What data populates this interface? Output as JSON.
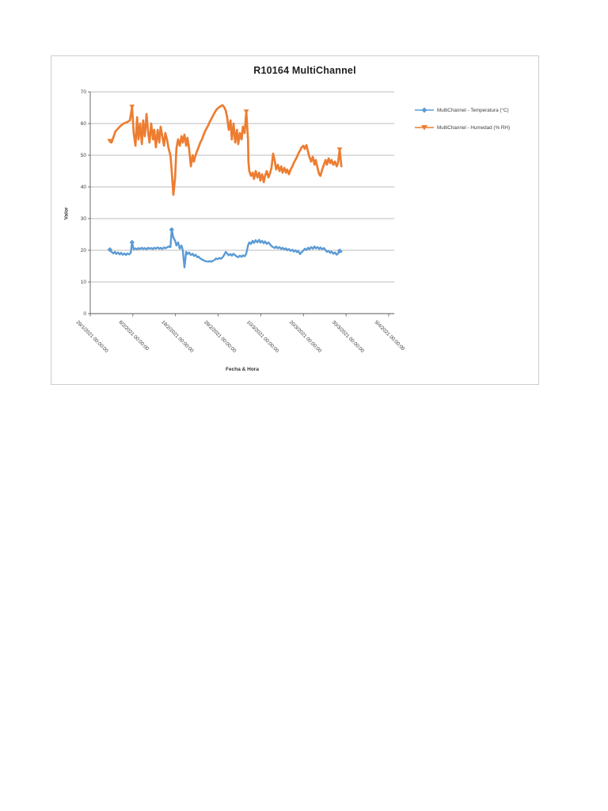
{
  "page": {
    "background": "#ffffff"
  },
  "chart_data": {
    "type": "line",
    "title": "R10164 MultiChannel",
    "xlabel": "Fecha & Hora",
    "ylabel": "Valor",
    "ylim": [
      0,
      70
    ],
    "y_ticks": [
      0,
      10,
      20,
      30,
      40,
      50,
      60,
      70
    ],
    "x_tick_labels": [
      "29/1/2021 00:00:00",
      "8/2/2021 00:00:00",
      "18/2/2021 00:00:00",
      "28/2/2021 00:00:00",
      "10/3/2021 00:00:00",
      "20/3/2021 00:00:00",
      "30/3/2021 00:00:00",
      "9/4/2021 00:00:00"
    ],
    "x_tick_days": [
      0,
      10,
      20,
      30,
      40,
      50,
      60,
      70
    ],
    "x_unit": "days since 29/1/2021 00:00:00",
    "grid": true,
    "legend_position": "right",
    "colors": {
      "grid": "#a6a6a6",
      "axis": "#595959",
      "tick_text": "#404040"
    },
    "series": [
      {
        "name": "MultiChannel - Temperatura  (°C)",
        "color": "#5b9bd5",
        "marker": "diamond",
        "marker_points": [
          [
            4.6,
            20.2
          ],
          [
            9.8,
            22.5
          ],
          [
            19.1,
            26.5
          ],
          [
            58.5,
            19.8
          ]
        ],
        "points": [
          [
            4.6,
            20.2
          ],
          [
            5.0,
            19.5
          ],
          [
            5.4,
            19.0
          ],
          [
            5.8,
            19.5
          ],
          [
            6.1,
            18.8
          ],
          [
            6.5,
            19.3
          ],
          [
            6.9,
            18.7
          ],
          [
            7.2,
            19.2
          ],
          [
            7.6,
            18.6
          ],
          [
            8.0,
            19.0
          ],
          [
            8.4,
            18.5
          ],
          [
            8.7,
            19.0
          ],
          [
            9.1,
            18.7
          ],
          [
            9.5,
            19.2
          ],
          [
            9.8,
            22.5
          ],
          [
            10.2,
            20.3
          ],
          [
            10.6,
            20.6
          ],
          [
            11.0,
            20.3
          ],
          [
            11.3,
            20.7
          ],
          [
            11.7,
            20.4
          ],
          [
            12.1,
            20.8
          ],
          [
            12.4,
            20.4
          ],
          [
            12.8,
            20.7
          ],
          [
            13.2,
            20.3
          ],
          [
            13.6,
            20.8
          ],
          [
            13.9,
            20.5
          ],
          [
            14.3,
            20.7
          ],
          [
            14.7,
            20.4
          ],
          [
            15.0,
            20.8
          ],
          [
            15.4,
            20.5
          ],
          [
            15.8,
            20.9
          ],
          [
            16.2,
            20.5
          ],
          [
            16.5,
            20.8
          ],
          [
            16.9,
            20.4
          ],
          [
            17.3,
            20.9
          ],
          [
            17.6,
            20.6
          ],
          [
            18.0,
            20.9
          ],
          [
            18.4,
            21.2
          ],
          [
            18.8,
            21.0
          ],
          [
            19.1,
            26.5
          ],
          [
            19.5,
            24.0
          ],
          [
            19.9,
            23.0
          ],
          [
            20.2,
            21.5
          ],
          [
            20.6,
            22.5
          ],
          [
            21.0,
            20.5
          ],
          [
            21.4,
            21.5
          ],
          [
            21.7,
            20.0
          ],
          [
            22.1,
            14.6
          ],
          [
            22.5,
            19.5
          ],
          [
            22.8,
            18.8
          ],
          [
            23.2,
            19.3
          ],
          [
            23.6,
            18.5
          ],
          [
            24.0,
            18.9
          ],
          [
            24.3,
            18.2
          ],
          [
            24.7,
            18.6
          ],
          [
            25.1,
            17.8
          ],
          [
            25.4,
            18.0
          ],
          [
            25.8,
            17.4
          ],
          [
            26.2,
            17.1
          ],
          [
            26.6,
            16.8
          ],
          [
            26.9,
            16.6
          ],
          [
            27.3,
            16.5
          ],
          [
            27.7,
            16.4
          ],
          [
            28.0,
            16.6
          ],
          [
            28.4,
            16.4
          ],
          [
            28.8,
            16.7
          ],
          [
            29.2,
            17.0
          ],
          [
            29.5,
            17.4
          ],
          [
            29.9,
            17.2
          ],
          [
            30.3,
            17.6
          ],
          [
            30.6,
            17.3
          ],
          [
            31.0,
            17.7
          ],
          [
            31.4,
            18.5
          ],
          [
            31.8,
            19.5
          ],
          [
            32.1,
            19.0
          ],
          [
            32.5,
            18.4
          ],
          [
            32.9,
            18.8
          ],
          [
            33.2,
            18.3
          ],
          [
            33.6,
            18.9
          ],
          [
            34.0,
            18.4
          ],
          [
            34.4,
            18.0
          ],
          [
            34.7,
            17.8
          ],
          [
            35.1,
            18.3
          ],
          [
            35.5,
            17.9
          ],
          [
            35.8,
            18.4
          ],
          [
            36.2,
            18.1
          ],
          [
            36.6,
            19.0
          ],
          [
            37.0,
            21.5
          ],
          [
            37.3,
            22.5
          ],
          [
            37.7,
            22.0
          ],
          [
            38.1,
            23.0
          ],
          [
            38.4,
            22.3
          ],
          [
            38.8,
            23.2
          ],
          [
            39.2,
            22.5
          ],
          [
            39.6,
            23.3
          ],
          [
            39.9,
            22.4
          ],
          [
            40.3,
            23.0
          ],
          [
            40.7,
            22.2
          ],
          [
            41.0,
            22.8
          ],
          [
            41.4,
            22.0
          ],
          [
            41.8,
            22.5
          ],
          [
            42.2,
            21.8
          ],
          [
            42.5,
            21.3
          ],
          [
            42.9,
            21.0
          ],
          [
            43.3,
            20.7
          ],
          [
            43.6,
            21.2
          ],
          [
            44.0,
            20.6
          ],
          [
            44.4,
            21.0
          ],
          [
            44.8,
            20.4
          ],
          [
            45.1,
            20.8
          ],
          [
            45.5,
            20.3
          ],
          [
            45.9,
            20.6
          ],
          [
            46.2,
            20.0
          ],
          [
            46.6,
            20.4
          ],
          [
            47.0,
            19.8
          ],
          [
            47.4,
            20.2
          ],
          [
            47.7,
            19.6
          ],
          [
            48.1,
            20.0
          ],
          [
            48.5,
            19.4
          ],
          [
            48.8,
            19.8
          ],
          [
            49.2,
            18.8
          ],
          [
            49.6,
            19.4
          ],
          [
            50.0,
            19.9
          ],
          [
            50.3,
            20.5
          ],
          [
            50.7,
            20.1
          ],
          [
            51.1,
            20.8
          ],
          [
            51.4,
            20.3
          ],
          [
            51.8,
            21.0
          ],
          [
            52.2,
            20.5
          ],
          [
            52.6,
            21.2
          ],
          [
            52.9,
            20.6
          ],
          [
            53.3,
            21.0
          ],
          [
            53.7,
            20.4
          ],
          [
            54.0,
            20.9
          ],
          [
            54.4,
            20.3
          ],
          [
            54.8,
            20.7
          ],
          [
            55.2,
            20.0
          ],
          [
            55.5,
            19.5
          ],
          [
            55.9,
            19.8
          ],
          [
            56.3,
            19.2
          ],
          [
            56.6,
            19.6
          ],
          [
            57.0,
            18.9
          ],
          [
            57.4,
            19.3
          ],
          [
            57.8,
            18.6
          ],
          [
            58.1,
            19.0
          ],
          [
            58.5,
            19.8
          ],
          [
            58.9,
            19.5
          ]
        ]
      },
      {
        "name": "MultiChannel - Humedad (% RH)",
        "color": "#ed7d31",
        "marker": "triangle-down",
        "marker_points": [
          [
            4.6,
            54.5
          ],
          [
            9.8,
            65.3
          ],
          [
            36.6,
            63.8
          ],
          [
            58.5,
            51.8
          ]
        ],
        "points": [
          [
            4.6,
            54.5
          ],
          [
            5.0,
            54.0
          ],
          [
            5.9,
            57.5
          ],
          [
            6.9,
            59.0
          ],
          [
            7.8,
            60.0
          ],
          [
            8.7,
            60.5
          ],
          [
            9.3,
            61.0
          ],
          [
            9.8,
            65.3
          ],
          [
            10.2,
            57.0
          ],
          [
            10.6,
            53.0
          ],
          [
            11.0,
            62.0
          ],
          [
            11.3,
            55.0
          ],
          [
            11.7,
            60.0
          ],
          [
            12.1,
            53.5
          ],
          [
            12.4,
            61.0
          ],
          [
            12.8,
            56.0
          ],
          [
            13.2,
            63.0
          ],
          [
            13.6,
            57.0
          ],
          [
            13.9,
            54.0
          ],
          [
            14.3,
            60.0
          ],
          [
            14.7,
            55.0
          ],
          [
            15.0,
            58.0
          ],
          [
            15.4,
            52.5
          ],
          [
            15.8,
            58.0
          ],
          [
            16.2,
            54.0
          ],
          [
            16.5,
            59.0
          ],
          [
            16.9,
            56.0
          ],
          [
            17.3,
            53.0
          ],
          [
            17.6,
            57.0
          ],
          [
            18.0,
            55.0
          ],
          [
            18.4,
            52.0
          ],
          [
            18.8,
            50.0
          ],
          [
            19.1,
            45.0
          ],
          [
            19.5,
            37.5
          ],
          [
            19.9,
            43.0
          ],
          [
            20.2,
            52.0
          ],
          [
            20.6,
            55.0
          ],
          [
            21.0,
            53.0
          ],
          [
            21.4,
            56.0
          ],
          [
            21.7,
            54.0
          ],
          [
            22.1,
            56.5
          ],
          [
            22.5,
            53.0
          ],
          [
            22.8,
            55.5
          ],
          [
            23.2,
            52.0
          ],
          [
            23.6,
            46.5
          ],
          [
            24.0,
            50.0
          ],
          [
            24.3,
            48.0
          ],
          [
            24.7,
            50.0
          ],
          [
            25.1,
            51.5
          ],
          [
            25.4,
            52.5
          ],
          [
            25.8,
            54.0
          ],
          [
            26.2,
            55.0
          ],
          [
            26.6,
            56.5
          ],
          [
            26.9,
            57.5
          ],
          [
            27.3,
            58.5
          ],
          [
            27.7,
            59.5
          ],
          [
            28.0,
            60.5
          ],
          [
            28.4,
            61.5
          ],
          [
            28.8,
            62.5
          ],
          [
            29.2,
            63.5
          ],
          [
            29.5,
            64.2
          ],
          [
            29.9,
            64.8
          ],
          [
            30.3,
            65.2
          ],
          [
            30.6,
            65.5
          ],
          [
            31.0,
            65.8
          ],
          [
            31.4,
            65.2
          ],
          [
            31.8,
            64.0
          ],
          [
            32.1,
            62.0
          ],
          [
            32.5,
            58.0
          ],
          [
            32.9,
            61.0
          ],
          [
            33.2,
            55.0
          ],
          [
            33.6,
            60.0
          ],
          [
            34.0,
            54.0
          ],
          [
            34.4,
            58.0
          ],
          [
            34.7,
            53.5
          ],
          [
            35.1,
            57.0
          ],
          [
            35.5,
            55.0
          ],
          [
            35.8,
            59.0
          ],
          [
            36.2,
            57.0
          ],
          [
            36.6,
            63.8
          ],
          [
            37.0,
            55.0
          ],
          [
            37.1,
            48.0
          ],
          [
            37.3,
            45.0
          ],
          [
            37.7,
            43.5
          ],
          [
            38.1,
            44.5
          ],
          [
            38.4,
            42.5
          ],
          [
            38.8,
            45.0
          ],
          [
            39.2,
            43.0
          ],
          [
            39.6,
            44.5
          ],
          [
            39.9,
            42.0
          ],
          [
            40.3,
            44.0
          ],
          [
            40.7,
            41.5
          ],
          [
            41.0,
            43.5
          ],
          [
            41.4,
            45.0
          ],
          [
            41.8,
            43.0
          ],
          [
            42.2,
            44.5
          ],
          [
            42.5,
            46.0
          ],
          [
            42.9,
            50.5
          ],
          [
            43.3,
            48.0
          ],
          [
            43.6,
            45.5
          ],
          [
            44.0,
            47.0
          ],
          [
            44.4,
            45.0
          ],
          [
            44.8,
            46.5
          ],
          [
            45.1,
            44.5
          ],
          [
            45.5,
            46.0
          ],
          [
            45.9,
            44.5
          ],
          [
            46.2,
            45.5
          ],
          [
            46.6,
            44.0
          ],
          [
            47.0,
            45.5
          ],
          [
            47.4,
            46.5
          ],
          [
            47.7,
            47.5
          ],
          [
            48.1,
            48.5
          ],
          [
            48.5,
            49.5
          ],
          [
            48.8,
            50.5
          ],
          [
            49.2,
            51.5
          ],
          [
            49.6,
            52.5
          ],
          [
            50.0,
            53.0
          ],
          [
            50.3,
            52.0
          ],
          [
            50.7,
            53.2
          ],
          [
            51.1,
            51.0
          ],
          [
            51.4,
            49.5
          ],
          [
            51.8,
            48.0
          ],
          [
            52.2,
            49.5
          ],
          [
            52.6,
            47.0
          ],
          [
            52.9,
            48.5
          ],
          [
            53.3,
            46.0
          ],
          [
            53.7,
            44.0
          ],
          [
            54.0,
            43.5
          ],
          [
            54.4,
            45.5
          ],
          [
            54.8,
            47.0
          ],
          [
            55.2,
            48.5
          ],
          [
            55.5,
            47.0
          ],
          [
            55.9,
            49.0
          ],
          [
            56.3,
            47.5
          ],
          [
            56.6,
            48.5
          ],
          [
            57.0,
            47.0
          ],
          [
            57.4,
            48.0
          ],
          [
            57.8,
            46.5
          ],
          [
            58.1,
            47.5
          ],
          [
            58.5,
            51.8
          ],
          [
            58.9,
            46.5
          ]
        ]
      }
    ]
  }
}
